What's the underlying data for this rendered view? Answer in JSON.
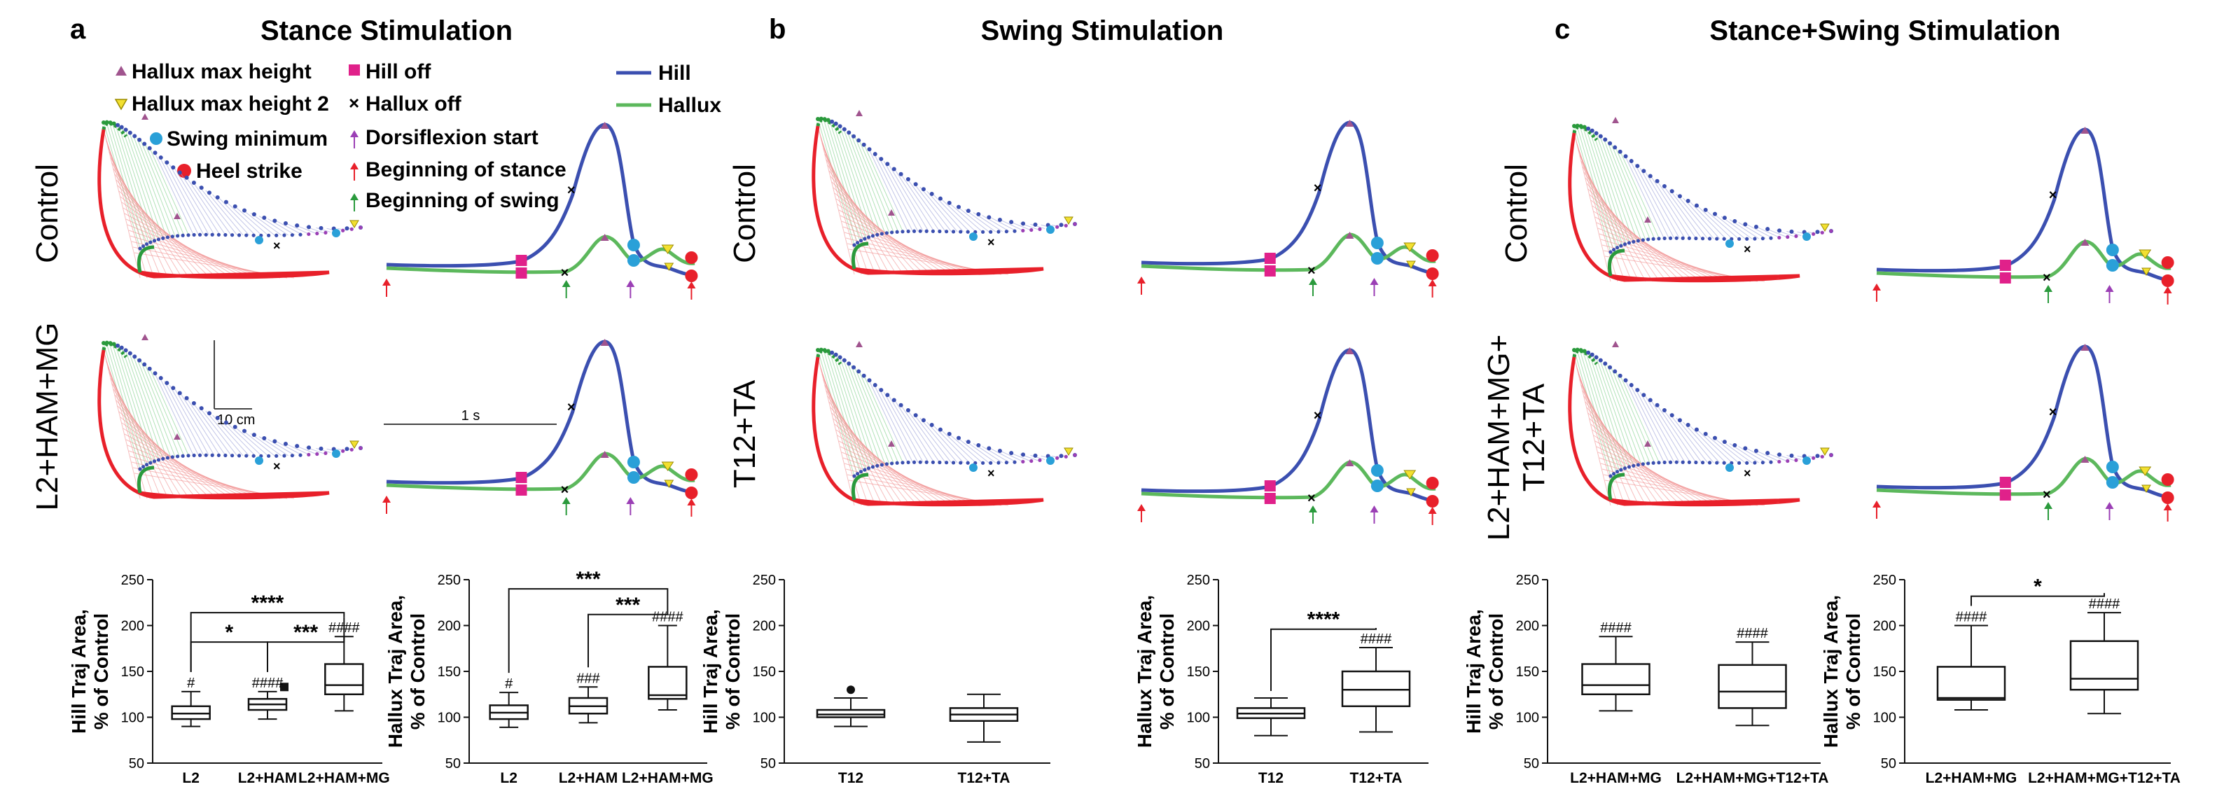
{
  "panels": {
    "a": {
      "letter": "a",
      "title": "Stance Stimulation",
      "row1": "Control",
      "row2": "L2+HAM+MG"
    },
    "b": {
      "letter": "b",
      "title": "Swing Stimulation",
      "row1": "Control",
      "row2": "T12+TA"
    },
    "c": {
      "letter": "c",
      "title": "Stance+Swing Stimulation",
      "row1": "Control",
      "row2a": "L2+HAM+MG+",
      "row2b": "T12+TA"
    }
  },
  "legend": {
    "hallux_max_height": "Hallux max height",
    "hallux_max_height_2": "Hallux max height 2",
    "swing_minimum": "Swing minimum",
    "heel_strike": "Heel strike",
    "hill_off": "Hill off",
    "hallux_off": "Hallux off",
    "dorsiflexion_start": "Dorsiflexion start",
    "beginning_of_stance": "Beginning of stance",
    "beginning_of_swing": "Beginning of swing",
    "hill": "Hill",
    "hallux": "Hallux"
  },
  "scale": {
    "length": "10 cm",
    "time": "1 s"
  },
  "colors": {
    "hill": "#3b4fb0",
    "hallux": "#5cb85c",
    "stance": "#e8202a",
    "swing": "#2a9a3c",
    "hill_off": "#e0218a",
    "max_height": "#a0548e",
    "max_height2": "#f2e030",
    "swing_min": "#2aa0d8",
    "heel_strike": "#e8202a",
    "dorsiflexion": "#9b3fb5"
  },
  "chart_data": [
    {
      "type": "box",
      "title": "a - Hill",
      "ylabel_line1": "Hill Traj Area,",
      "ylabel_line2": "% of Control",
      "ylim": [
        50,
        250
      ],
      "yticks": [
        "50",
        "100",
        "150",
        "200",
        "250"
      ],
      "categories": [
        "L2",
        "L2+HAM",
        "L2+HAM+MG"
      ],
      "boxes": [
        {
          "min": 90,
          "q1": 98,
          "median": 104,
          "q3": 112,
          "max": 128,
          "hash": "#",
          "outliers": []
        },
        {
          "min": 98,
          "q1": 108,
          "median": 114,
          "q3": 120,
          "max": 128,
          "hash": "####",
          "outliers": [
            133
          ]
        },
        {
          "min": 107,
          "q1": 125,
          "median": 135,
          "q3": 158,
          "max": 188,
          "hash": "####",
          "outliers": []
        }
      ],
      "brackets": [
        {
          "from": 0,
          "to": 2,
          "label": "****",
          "y": 214
        },
        {
          "from": 0,
          "to": 1,
          "label": "*",
          "y": 182
        },
        {
          "from": 1,
          "to": 2,
          "label": "***",
          "y": 182
        }
      ]
    },
    {
      "type": "box",
      "title": "a - Hallux",
      "ylabel_line1": "Hallux Traj Area,",
      "ylabel_line2": "% of Control",
      "ylim": [
        50,
        250
      ],
      "yticks": [
        "50",
        "100",
        "150",
        "200",
        "250"
      ],
      "categories": [
        "L2",
        "L2+HAM",
        "L2+HAM+MG"
      ],
      "boxes": [
        {
          "min": 89,
          "q1": 98,
          "median": 105,
          "q3": 113,
          "max": 127,
          "hash": "#",
          "outliers": []
        },
        {
          "min": 94,
          "q1": 104,
          "median": 112,
          "q3": 121,
          "max": 133,
          "hash": "###",
          "outliers": []
        },
        {
          "min": 108,
          "q1": 120,
          "median": 124,
          "q3": 155,
          "max": 200,
          "hash": "####",
          "outliers": []
        }
      ],
      "brackets": [
        {
          "from": 0,
          "to": 2,
          "label": "***",
          "y": 240
        },
        {
          "from": 1,
          "to": 2,
          "label": "***",
          "y": 212
        }
      ]
    },
    {
      "type": "box",
      "title": "b - Hill",
      "ylabel_line1": "Hill Traj Area,",
      "ylabel_line2": "% of Control",
      "ylim": [
        50,
        250
      ],
      "yticks": [
        "50",
        "100",
        "150",
        "200",
        "250"
      ],
      "categories": [
        "T12",
        "T12+TA"
      ],
      "boxes": [
        {
          "min": 90,
          "q1": 100,
          "median": 103,
          "q3": 108,
          "max": 121,
          "hash": "",
          "outliers": [
            130
          ]
        },
        {
          "min": 73,
          "q1": 96,
          "median": 103,
          "q3": 110,
          "max": 125,
          "hash": "",
          "outliers": []
        }
      ],
      "brackets": []
    },
    {
      "type": "box",
      "title": "b - Hallux",
      "ylabel_line1": "Hallux Traj Area,",
      "ylabel_line2": "% of Control",
      "ylim": [
        50,
        250
      ],
      "yticks": [
        "50",
        "100",
        "150",
        "200",
        "250"
      ],
      "categories": [
        "T12",
        "T12+TA"
      ],
      "boxes": [
        {
          "min": 80,
          "q1": 99,
          "median": 104,
          "q3": 110,
          "max": 121,
          "hash": "",
          "outliers": []
        },
        {
          "min": 84,
          "q1": 112,
          "median": 130,
          "q3": 150,
          "max": 176,
          "hash": "####",
          "outliers": []
        }
      ],
      "brackets": [
        {
          "from": 0,
          "to": 1,
          "label": "****",
          "y": 196
        }
      ]
    },
    {
      "type": "box",
      "title": "c - Hill",
      "ylabel_line1": "Hill Traj Area,",
      "ylabel_line2": "% of Control",
      "ylim": [
        50,
        250
      ],
      "yticks": [
        "50",
        "100",
        "150",
        "200",
        "250"
      ],
      "categories": [
        "L2+HAM+MG",
        "L2+HAM+MG+T12+TA"
      ],
      "boxes": [
        {
          "min": 107,
          "q1": 125,
          "median": 135,
          "q3": 158,
          "max": 188,
          "hash": "####",
          "outliers": []
        },
        {
          "min": 91,
          "q1": 110,
          "median": 128,
          "q3": 157,
          "max": 182,
          "hash": "####",
          "outliers": []
        }
      ],
      "brackets": []
    },
    {
      "type": "box",
      "title": "c - Hallux",
      "ylabel_line1": "Hallux Traj Area,",
      "ylabel_line2": "% of Control",
      "ylim": [
        50,
        250
      ],
      "yticks": [
        "50",
        "100",
        "150",
        "200",
        "250"
      ],
      "categories": [
        "L2+HAM+MG",
        "L2+HAM+MG+T12+TA"
      ],
      "boxes": [
        {
          "min": 108,
          "q1": 119,
          "median": 121,
          "q3": 155,
          "max": 200,
          "hash": "####",
          "outliers": []
        },
        {
          "min": 104,
          "q1": 130,
          "median": 142,
          "q3": 183,
          "max": 214,
          "hash": "####",
          "outliers": []
        }
      ],
      "brackets": [
        {
          "from": 0,
          "to": 1,
          "label": "*",
          "y": 232
        }
      ]
    }
  ]
}
